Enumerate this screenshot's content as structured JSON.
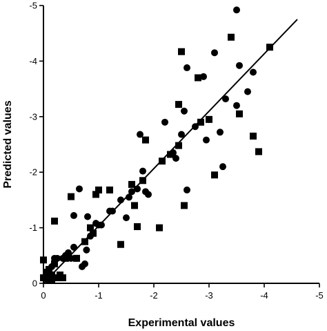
{
  "chart_data": {
    "type": "scatter",
    "title": "",
    "xlabel": "Experimental values",
    "ylabel": "Predicted values",
    "xlim": [
      0,
      -5
    ],
    "ylim": [
      0,
      -5
    ],
    "x_ticks": [
      0,
      -1,
      -2,
      -3,
      -4,
      -5
    ],
    "y_ticks": [
      0,
      -1,
      -2,
      -3,
      -4,
      -5
    ],
    "x_tick_labels": [
      "0",
      "-1",
      "-2",
      "-3",
      "-4",
      "-5"
    ],
    "y_tick_labels": [
      "0",
      "-1",
      "-2",
      "-3",
      "-4",
      "-5"
    ],
    "grid": false,
    "legend": "none",
    "fit_line": {
      "x": [
        0,
        -4.6
      ],
      "y": [
        0,
        -4.75
      ]
    },
    "series": [
      {
        "marker": "circle",
        "points": [
          [
            -0.05,
            -0.1
          ],
          [
            -0.1,
            -0.2
          ],
          [
            -0.15,
            -0.3
          ],
          [
            -0.2,
            -0.38
          ],
          [
            -0.25,
            -0.45
          ],
          [
            -0.3,
            -0.15
          ],
          [
            -0.35,
            -0.45
          ],
          [
            -0.4,
            -0.5
          ],
          [
            -0.45,
            -0.55
          ],
          [
            -0.5,
            -0.45
          ],
          [
            -0.55,
            -0.65
          ],
          [
            -0.6,
            -0.45
          ],
          [
            -0.55,
            -1.22
          ],
          [
            -0.65,
            -1.7
          ],
          [
            -0.7,
            -0.3
          ],
          [
            -0.75,
            -0.35
          ],
          [
            -0.78,
            -0.6
          ],
          [
            -0.8,
            -1.2
          ],
          [
            -0.85,
            -0.85
          ],
          [
            -0.9,
            -0.9
          ],
          [
            -0.95,
            -1.08
          ],
          [
            -1.0,
            -1.05
          ],
          [
            -1.05,
            -1.05
          ],
          [
            -1.2,
            -1.3
          ],
          [
            -1.25,
            -1.3
          ],
          [
            -1.4,
            -1.5
          ],
          [
            -1.5,
            -1.18
          ],
          [
            -1.55,
            -1.55
          ],
          [
            -1.6,
            -1.65
          ],
          [
            -1.7,
            -1.7
          ],
          [
            -1.75,
            -2.68
          ],
          [
            -1.8,
            -2.02
          ],
          [
            -1.85,
            -1.65
          ],
          [
            -1.9,
            -1.6
          ],
          [
            -2.2,
            -2.9
          ],
          [
            -2.35,
            -2.35
          ],
          [
            -2.4,
            -2.25
          ],
          [
            -2.5,
            -2.68
          ],
          [
            -2.55,
            -3.1
          ],
          [
            -2.6,
            -3.88
          ],
          [
            -2.6,
            -1.68
          ],
          [
            -2.75,
            -2.82
          ],
          [
            -2.9,
            -3.72
          ],
          [
            -2.95,
            -2.58
          ],
          [
            -3.0,
            -2.95
          ],
          [
            -3.1,
            -4.15
          ],
          [
            -3.2,
            -2.72
          ],
          [
            -3.25,
            -2.1
          ],
          [
            -3.3,
            -3.32
          ],
          [
            -3.5,
            -3.2
          ],
          [
            -3.5,
            -4.92
          ],
          [
            -3.55,
            -3.92
          ],
          [
            -3.7,
            -3.45
          ],
          [
            -3.8,
            -3.8
          ],
          [
            -0.15,
            -0.05
          ],
          [
            -0.2,
            -0.45
          ]
        ]
      },
      {
        "marker": "square",
        "points": [
          [
            0,
            -0.1
          ],
          [
            0,
            -0.42
          ],
          [
            -0.05,
            -0.2
          ],
          [
            -0.1,
            -0.25
          ],
          [
            -0.1,
            -0.05
          ],
          [
            -0.15,
            -0.15
          ],
          [
            -0.2,
            -0.35
          ],
          [
            -0.2,
            -1.12
          ],
          [
            -0.25,
            -0.1
          ],
          [
            -0.3,
            -0.15
          ],
          [
            -0.35,
            -0.1
          ],
          [
            -0.4,
            -0.45
          ],
          [
            -0.5,
            -1.56
          ],
          [
            -0.6,
            -0.45
          ],
          [
            -0.75,
            -0.75
          ],
          [
            -0.85,
            -1.0
          ],
          [
            -0.9,
            -0.9
          ],
          [
            -0.95,
            -1.6
          ],
          [
            -1.0,
            -1.68
          ],
          [
            -1.2,
            -1.68
          ],
          [
            -1.4,
            -0.7
          ],
          [
            -1.6,
            -1.78
          ],
          [
            -1.65,
            -1.4
          ],
          [
            -1.7,
            -1.02
          ],
          [
            -1.8,
            -1.85
          ],
          [
            -1.85,
            -2.58
          ],
          [
            -2.1,
            -1.0
          ],
          [
            -2.15,
            -2.2
          ],
          [
            -2.3,
            -2.32
          ],
          [
            -2.45,
            -2.48
          ],
          [
            -2.45,
            -3.22
          ],
          [
            -2.5,
            -4.17
          ],
          [
            -2.55,
            -1.4
          ],
          [
            -2.8,
            -3.7
          ],
          [
            -2.85,
            -2.9
          ],
          [
            -3.0,
            -2.95
          ],
          [
            -3.1,
            -1.95
          ],
          [
            -3.4,
            -4.43
          ],
          [
            -3.55,
            -3.05
          ],
          [
            -3.8,
            -2.65
          ],
          [
            -3.9,
            -2.37
          ],
          [
            -4.1,
            -4.25
          ],
          [
            -0.15,
            -0.05
          ]
        ]
      }
    ]
  }
}
